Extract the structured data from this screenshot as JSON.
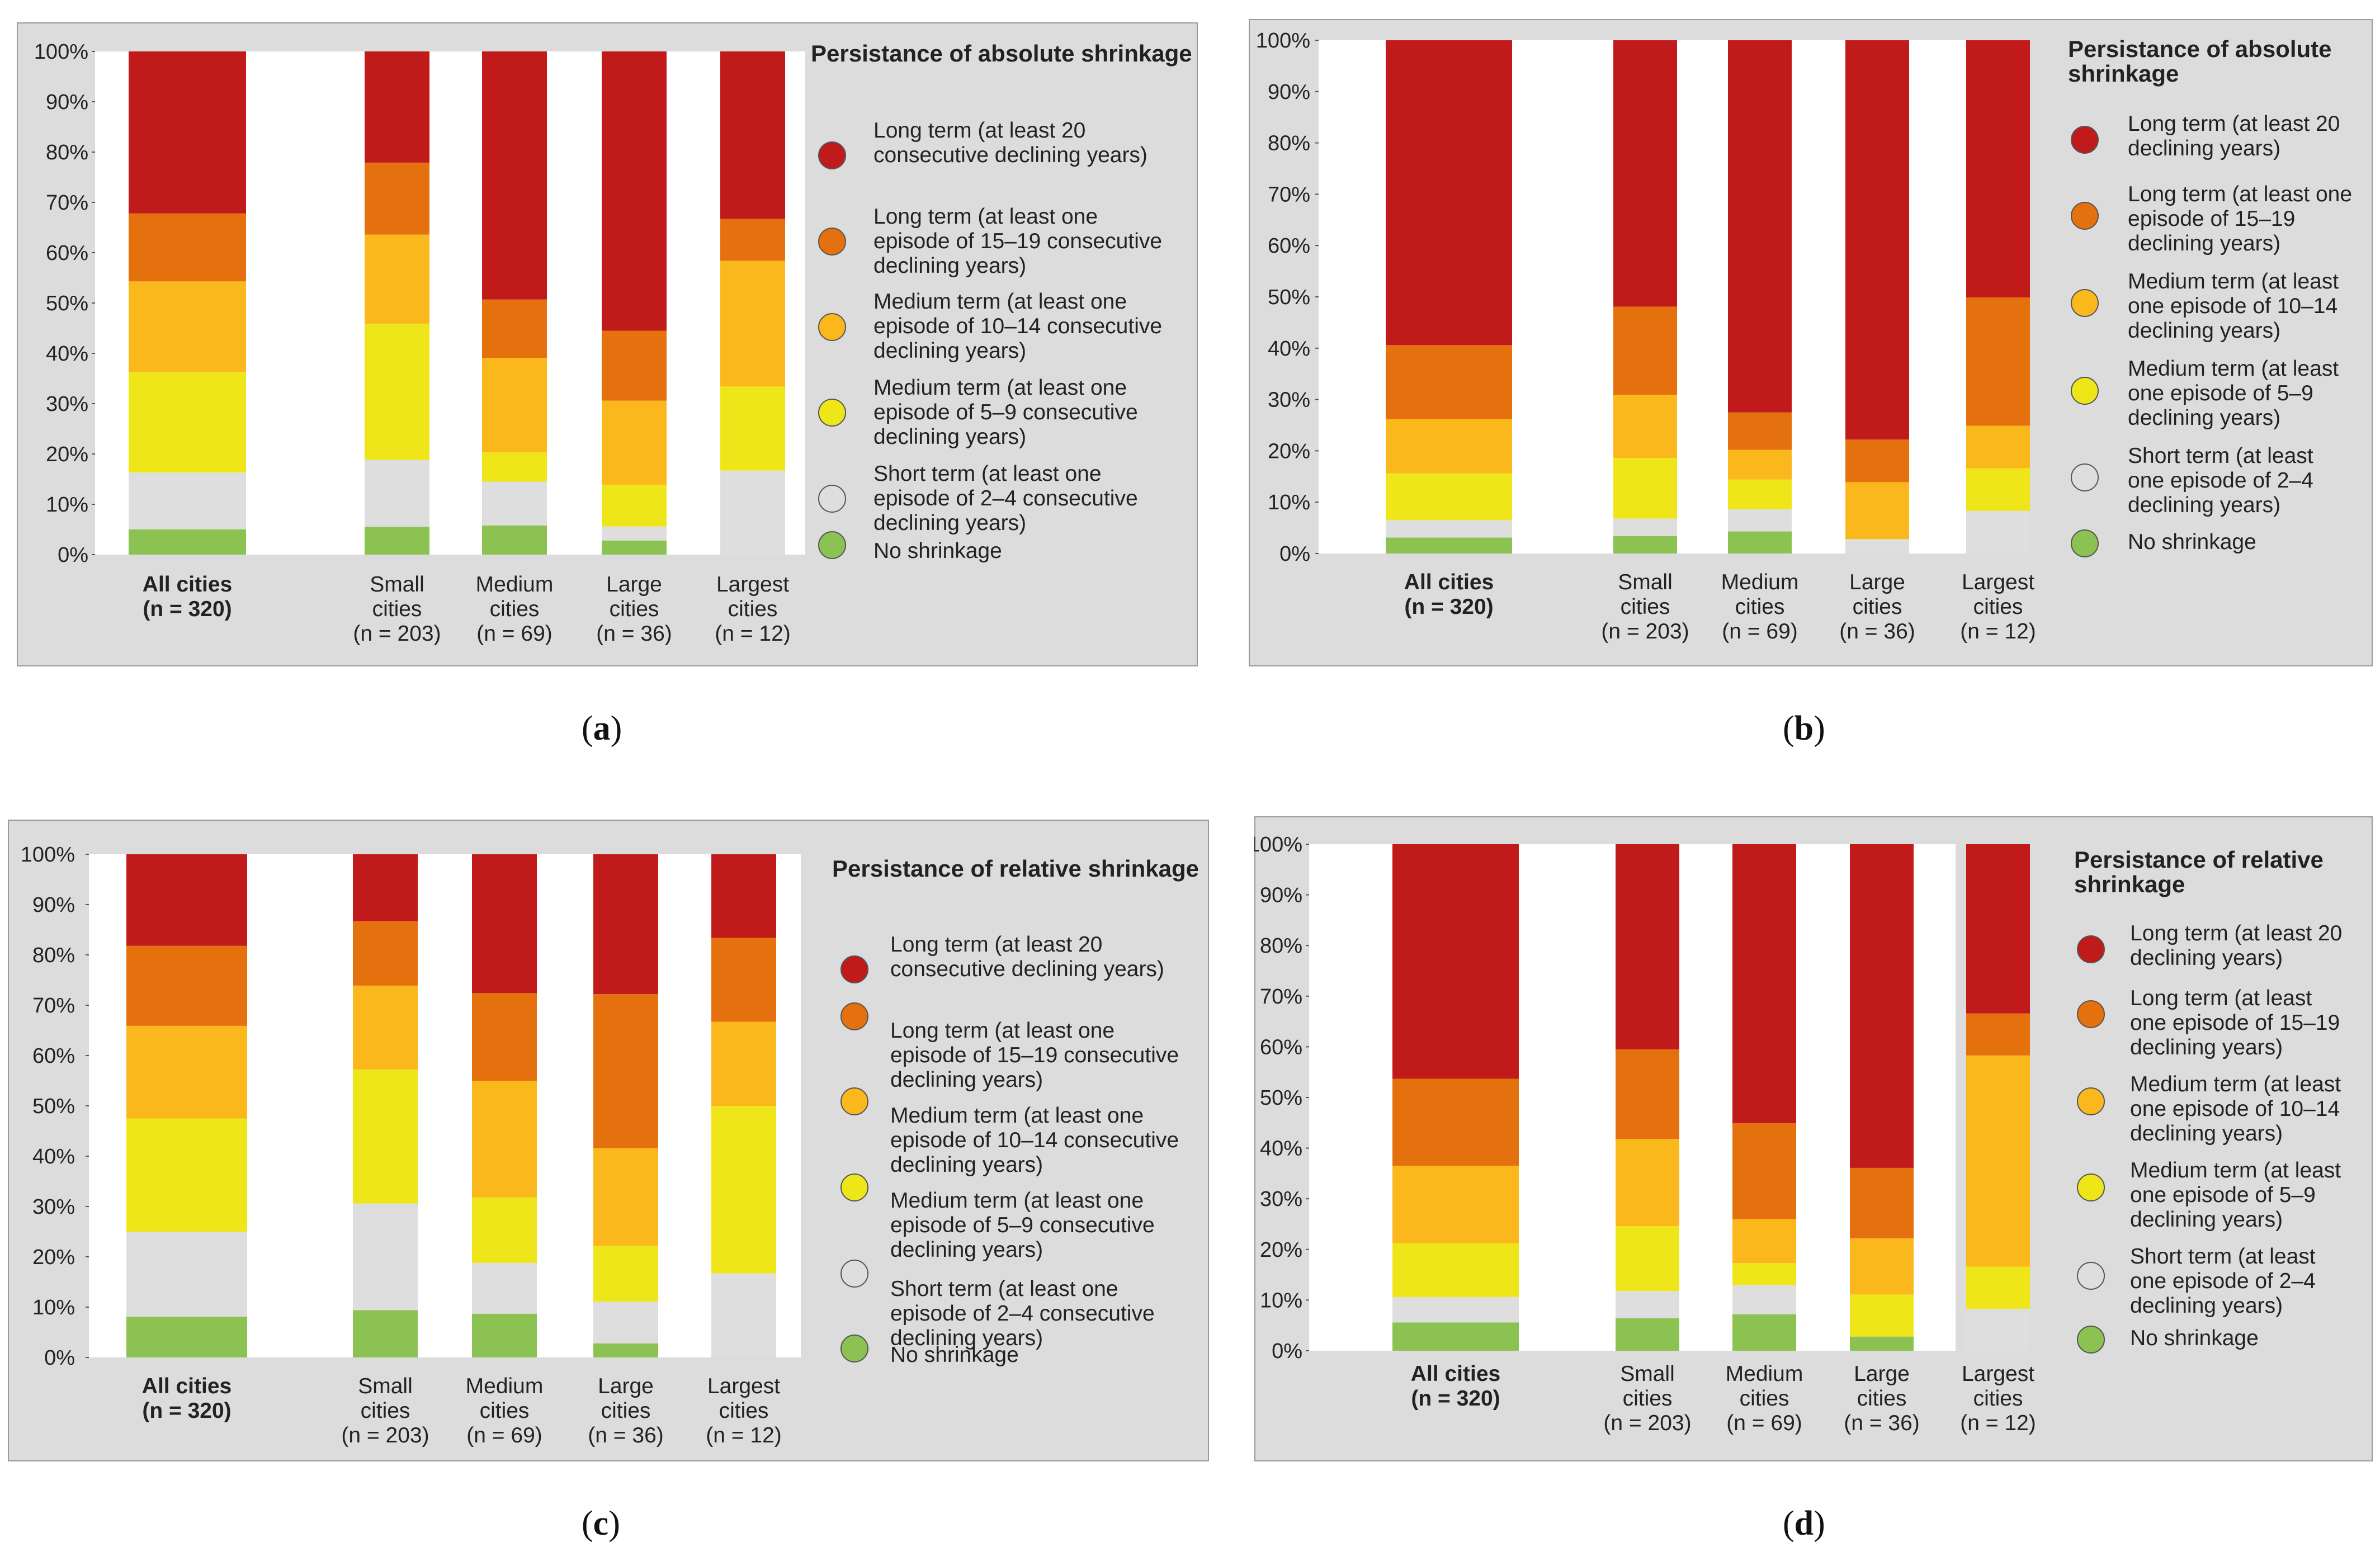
{
  "legend_items": [
    {
      "key": "long20",
      "color": "#c01a1a"
    },
    {
      "key": "long15",
      "color": "#e5700e"
    },
    {
      "key": "med10",
      "color": "#fbb81c"
    },
    {
      "key": "med5",
      "color": "#efe61a"
    },
    {
      "key": "short",
      "color": "#dedede"
    },
    {
      "key": "none",
      "color": "#8cc252"
    }
  ],
  "chart_data": [
    {
      "id": "a",
      "type": "bar",
      "stacked": true,
      "caption_letter": "a",
      "legend_title": [
        "Persistance of absolute shrinkage"
      ],
      "legend_labels": [
        [
          "Long term (at least 20",
          "consecutive declining years)"
        ],
        [
          "Long term (at least one",
          "episode of 15–19 consecutive",
          "declining years)"
        ],
        [
          "Medium term (at least one",
          "episode of 10–14 consecutive",
          "declining years)"
        ],
        [
          "Medium term (at least one",
          "episode of 5–9 consecutive",
          "declining years)"
        ],
        [
          "Short term (at least one",
          "episode of 2–4 consecutive",
          "declining years)"
        ],
        [
          "No shrinkage"
        ]
      ],
      "yticks": [
        "0%",
        "10%",
        "20%",
        "30%",
        "40%",
        "50%",
        "60%",
        "70%",
        "80%",
        "90%",
        "100%"
      ],
      "ylim": [
        0,
        100
      ],
      "categories": [
        {
          "lines": [
            "All cities",
            "(n = 320)"
          ],
          "bold": true
        },
        {
          "lines": [
            "Small",
            "cities",
            "(n = 203)"
          ],
          "bold": false
        },
        {
          "lines": [
            "Medium",
            "cities",
            "(n = 69)"
          ],
          "bold": false
        },
        {
          "lines": [
            "Large",
            "cities",
            "(n = 36)"
          ],
          "bold": false
        },
        {
          "lines": [
            "Largest",
            "cities",
            "(n = 12)"
          ],
          "bold": false
        }
      ],
      "series": [
        {
          "name": "No shrinkage",
          "values": [
            5,
            5.5,
            5.8,
            2.8,
            0
          ]
        },
        {
          "name": "Short term",
          "values": [
            11.3,
            13.3,
            8.7,
            2.8,
            16.7
          ]
        },
        {
          "name": "Medium term (5–9)",
          "values": [
            20,
            27.1,
            5.8,
            8.3,
            16.7
          ]
        },
        {
          "name": "Medium term (10–14)",
          "values": [
            18,
            17.7,
            18.8,
            16.7,
            25
          ]
        },
        {
          "name": "Long term (15–19)",
          "values": [
            13.5,
            14.3,
            11.6,
            13.9,
            8.3
          ]
        },
        {
          "name": "Long term (20+)",
          "values": [
            32.2,
            22.1,
            49.3,
            55.5,
            33.3
          ]
        }
      ]
    },
    {
      "id": "b",
      "type": "bar",
      "stacked": true,
      "caption_letter": "b",
      "legend_title": [
        "Persistance of absolute",
        "shrinkage"
      ],
      "legend_labels": [
        [
          "Long term (at least 20",
          "declining years)"
        ],
        [
          "Long term (at least one",
          "episode of 15–19",
          "declining years)"
        ],
        [
          "Medium term (at least",
          "one episode of 10–14",
          "declining years)"
        ],
        [
          "Medium term (at least",
          "one episode of 5–9",
          "declining years)"
        ],
        [
          "Short term (at least",
          "one episode of 2–4",
          "declining years)"
        ],
        [
          "No shrinkage"
        ]
      ],
      "yticks": [
        "0%",
        "10%",
        "20%",
        "30%",
        "40%",
        "50%",
        "60%",
        "70%",
        "80%",
        "90%",
        "100%"
      ],
      "ylim": [
        0,
        100
      ],
      "categories": [
        {
          "lines": [
            "All cities",
            "(n = 320)"
          ],
          "bold": true
        },
        {
          "lines": [
            "Small",
            "cities",
            "(n = 203)"
          ],
          "bold": false
        },
        {
          "lines": [
            "Medium",
            "cities",
            "(n = 69)"
          ],
          "bold": false
        },
        {
          "lines": [
            "Large",
            "cities",
            "(n = 36)"
          ],
          "bold": false
        },
        {
          "lines": [
            "Largest",
            "cities",
            "(n = 12)"
          ],
          "bold": false
        }
      ],
      "series": [
        {
          "name": "No shrinkage",
          "values": [
            3.1,
            3.4,
            4.3,
            0,
            0
          ]
        },
        {
          "name": "Short term",
          "values": [
            3.4,
            3.4,
            4.3,
            2.8,
            8.3
          ]
        },
        {
          "name": "Medium term (5–9)",
          "values": [
            9.1,
            11.8,
            5.8,
            0,
            8.3
          ]
        },
        {
          "name": "Medium term (10–14)",
          "values": [
            10.6,
            12.3,
            5.8,
            11.1,
            8.3
          ]
        },
        {
          "name": "Long term (15–19)",
          "values": [
            14.4,
            17.2,
            7.3,
            8.3,
            25
          ]
        },
        {
          "name": "Long term (20+)",
          "values": [
            59.4,
            51.9,
            72.5,
            77.8,
            50.1
          ]
        }
      ]
    },
    {
      "id": "c",
      "type": "bar",
      "stacked": true,
      "caption_letter": "c",
      "legend_title": [
        "Persistance of relative shrinkage"
      ],
      "legend_labels": [
        [
          "Long term (at least 20",
          "consecutive declining years)"
        ],
        [
          "Long term (at least one",
          "episode of 15–19 consecutive",
          "declining years)"
        ],
        [
          "Medium term (at least one",
          "episode of 10–14 consecutive",
          "declining years)"
        ],
        [
          "Medium term (at least one",
          "episode of 5–9 consecutive",
          "declining years)"
        ],
        [
          "Short term (at least one",
          "episode of 2–4 consecutive",
          "declining years)"
        ],
        [
          "No shrinkage"
        ]
      ],
      "yticks": [
        "0%",
        "10%",
        "20%",
        "30%",
        "40%",
        "50%",
        "60%",
        "70%",
        "80%",
        "90%",
        "100%"
      ],
      "ylim": [
        0,
        100
      ],
      "categories": [
        {
          "lines": [
            "All cities",
            "(n = 320)"
          ],
          "bold": true
        },
        {
          "lines": [
            "Small",
            "cities",
            "(n = 203)"
          ],
          "bold": false
        },
        {
          "lines": [
            "Medium",
            "cities",
            "(n = 69)"
          ],
          "bold": false
        },
        {
          "lines": [
            "Large",
            "cities",
            "(n = 36)"
          ],
          "bold": false
        },
        {
          "lines": [
            "Largest",
            "cities",
            "(n = 12)"
          ],
          "bold": false
        }
      ],
      "series": [
        {
          "name": "No shrinkage",
          "values": [
            8.1,
            9.4,
            8.7,
            2.8,
            0
          ]
        },
        {
          "name": "Short term",
          "values": [
            16.9,
            21.2,
            10.1,
            8.3,
            16.7
          ]
        },
        {
          "name": "Medium term (5–9)",
          "values": [
            22.5,
            26.6,
            13,
            11.1,
            33.3
          ]
        },
        {
          "name": "Medium term (10–14)",
          "values": [
            18.4,
            16.7,
            23.2,
            19.4,
            16.7
          ]
        },
        {
          "name": "Long term (15–19)",
          "values": [
            15.9,
            12.8,
            17.4,
            30.6,
            16.7
          ]
        },
        {
          "name": "Long term (20+)",
          "values": [
            18.2,
            13.3,
            27.6,
            27.8,
            16.6
          ]
        }
      ]
    },
    {
      "id": "d",
      "type": "bar",
      "stacked": true,
      "caption_letter": "d",
      "legend_title": [
        "Persistance of relative",
        "shrinkage"
      ],
      "legend_labels": [
        [
          "Long term (at least 20",
          "declining years)"
        ],
        [
          "Long term (at least",
          "one episode of 15–19",
          "declining years)"
        ],
        [
          "Medium term (at least",
          "one episode of 10–14",
          "declining years)"
        ],
        [
          "Medium term (at least",
          "one episode of 5–9",
          "declining years)"
        ],
        [
          "Short term (at least",
          "one episode of 2–4",
          "declining years)"
        ],
        [
          "No shrinkage"
        ]
      ],
      "yticks": [
        "0%",
        "10%",
        "20%",
        "30%",
        "40%",
        "50%",
        "60%",
        "70%",
        "80%",
        "90%",
        "100%"
      ],
      "ylim": [
        0,
        100
      ],
      "categories": [
        {
          "lines": [
            "All cities",
            "(n = 320)"
          ],
          "bold": true
        },
        {
          "lines": [
            "Small",
            "cities",
            "(n = 203)"
          ],
          "bold": false
        },
        {
          "lines": [
            "Medium",
            "cities",
            "(n = 69)"
          ],
          "bold": false
        },
        {
          "lines": [
            "Large",
            "cities",
            "(n = 36)"
          ],
          "bold": false
        },
        {
          "lines": [
            "Largest",
            "cities",
            "(n = 12)"
          ],
          "bold": false
        }
      ],
      "series": [
        {
          "name": "No shrinkage",
          "values": [
            5.6,
            6.4,
            7.2,
            2.8,
            0
          ]
        },
        {
          "name": "Short term",
          "values": [
            5,
            5.4,
            5.8,
            0,
            8.3
          ]
        },
        {
          "name": "Medium term (5–9)",
          "values": [
            10.6,
            12.8,
            4.3,
            8.3,
            8.3
          ]
        },
        {
          "name": "Medium term (10–14)",
          "values": [
            15.3,
            17.2,
            8.7,
            11.1,
            41.7
          ]
        },
        {
          "name": "Long term (15–19)",
          "values": [
            17.2,
            17.7,
            18.9,
            13.9,
            8.3
          ]
        },
        {
          "name": "Long term (20+)",
          "values": [
            46.3,
            40.5,
            55.1,
            63.9,
            33.4
          ]
        }
      ]
    }
  ]
}
